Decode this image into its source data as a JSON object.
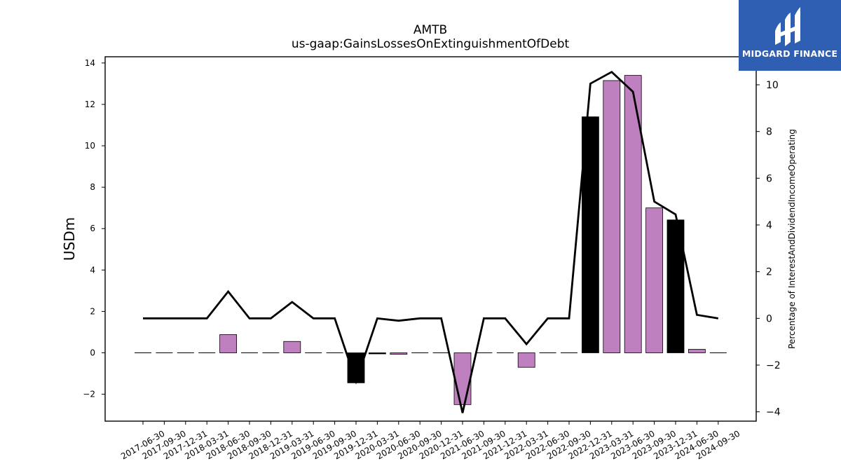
{
  "chart_data": {
    "type": "bar",
    "title": "AMTB",
    "subtitle": "us-gaap:GainsLossesOnExtinguishmentOfDebt",
    "ylabel": "USDm",
    "y2label": "Percentage of InterestAndDividendIncomeOperating",
    "ylim": [
      -3.3,
      14.3
    ],
    "y2lim": [
      -4.4,
      11.2
    ],
    "yticks": [
      -2,
      0,
      2,
      4,
      6,
      8,
      10,
      12,
      14
    ],
    "y2ticks": [
      -4,
      -2,
      0,
      2,
      4,
      6,
      8,
      10
    ],
    "grid": false,
    "categories": [
      "2017-06-30",
      "2017-09-30",
      "2017-12-31",
      "2018-03-31",
      "2018-06-30",
      "2018-09-30",
      "2018-12-31",
      "2019-03-31",
      "2019-06-30",
      "2019-09-30",
      "2019-12-31",
      "2020-03-31",
      "2020-06-30",
      "2020-09-30",
      "2020-12-31",
      "2021-06-30",
      "2021-09-30",
      "2021-12-31",
      "2022-03-31",
      "2022-06-30",
      "2022-09-30",
      "2022-12-31",
      "2023-03-31",
      "2023-06-30",
      "2023-09-30",
      "2023-12-31",
      "2024-06-30",
      "2024-09-30"
    ],
    "series": [
      {
        "kind": "bar",
        "values": [
          0,
          0,
          0,
          0,
          0.88,
          0,
          0,
          0.55,
          0,
          0,
          -1.45,
          -0.03,
          -0.07,
          0,
          0,
          -2.5,
          0,
          0,
          -0.7,
          0,
          0,
          11.4,
          13.15,
          13.4,
          7.0,
          6.42,
          0.17,
          0
        ],
        "colors": [
          "#bf80bf",
          "#bf80bf",
          "#bf80bf",
          "#bf80bf",
          "#bf80bf",
          "#bf80bf",
          "#bf80bf",
          "#bf80bf",
          "#bf80bf",
          "#bf80bf",
          "#000000",
          "#000000",
          "#bf80bf",
          "#bf80bf",
          "#bf80bf",
          "#bf80bf",
          "#bf80bf",
          "#bf80bf",
          "#bf80bf",
          "#bf80bf",
          "#bf80bf",
          "#000000",
          "#bf80bf",
          "#bf80bf",
          "#bf80bf",
          "#000000",
          "#bf80bf",
          "#bf80bf"
        ]
      },
      {
        "kind": "line",
        "axis": "right",
        "color": "#000000",
        "values": [
          0,
          0,
          0,
          0,
          1.15,
          0,
          0,
          0.7,
          0,
          0,
          -2.7,
          0,
          -0.1,
          0,
          0,
          -4.05,
          0,
          0,
          -1.1,
          0,
          0,
          10.05,
          10.55,
          9.7,
          5.0,
          4.45,
          0.15,
          0
        ]
      }
    ],
    "bar_color": "#bf80bf",
    "negative_bar_color": "#000000"
  },
  "logo": {
    "text": "MIDGARD FINANCE",
    "bg_color": "#2f5fb3"
  }
}
